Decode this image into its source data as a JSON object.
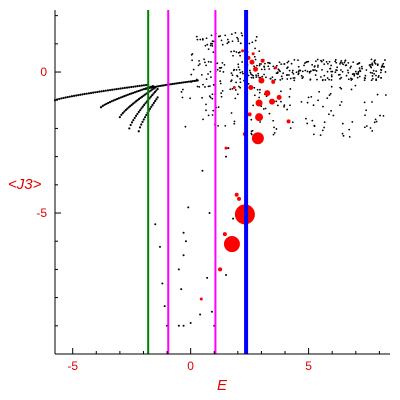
{
  "chart_data": {
    "type": "scatter",
    "title": "",
    "xlabel": "E",
    "ylabel": "<J3>",
    "xlim": [
      -5.75,
      8.45
    ],
    "ylim": [
      -10.0,
      2.2
    ],
    "x_ticks": [
      {
        "value": -5,
        "label": "-5"
      },
      {
        "value": 0,
        "label": "0"
      },
      {
        "value": 5,
        "label": "5"
      }
    ],
    "y_ticks": [
      {
        "value": 0,
        "label": "0"
      },
      {
        "value": -5,
        "label": "-5"
      }
    ],
    "grid": false,
    "colors": {
      "axis": "#000000",
      "labels": "#e00000",
      "black_series": "#000000",
      "red_series": "#ff0000"
    },
    "vertical_lines": [
      {
        "x": -1.8,
        "color": "#008000",
        "width": 2
      },
      {
        "x": -0.95,
        "color": "#ff00ff",
        "width": 2
      },
      {
        "x": 1.05,
        "color": "#ff00ff",
        "width": 2
      },
      {
        "x": 2.35,
        "color": "#0000ff",
        "width": 4
      }
    ],
    "black_series": {
      "bands": [
        {
          "x_start": -5.75,
          "x_end": -1.8,
          "y_start": -1.0,
          "y_end": -0.45,
          "count": 45
        },
        {
          "x_start": -3.8,
          "x_end": -1.6,
          "y_start": -1.25,
          "y_end": -0.5,
          "count": 30
        },
        {
          "x_start": -3.0,
          "x_end": -1.5,
          "y_start": -1.6,
          "y_end": -0.55,
          "count": 25
        },
        {
          "x_start": -2.6,
          "x_end": -1.4,
          "y_start": -2.0,
          "y_end": -0.6,
          "count": 22
        },
        {
          "x_start": -2.2,
          "x_end": -1.4,
          "y_start": -2.1,
          "y_end": -0.9,
          "count": 16
        },
        {
          "x_start": -1.9,
          "x_end": 0.3,
          "y_start": -0.6,
          "y_end": -0.3,
          "count": 30
        }
      ],
      "cloud": [
        {
          "x_min": 0.0,
          "x_max": 3.0,
          "y_min": -0.8,
          "y_max": 1.4,
          "count": 130
        },
        {
          "x_min": 2.5,
          "x_max": 8.3,
          "y_min": -0.3,
          "y_max": 0.45,
          "count": 230
        },
        {
          "x_min": 2.5,
          "x_max": 8.3,
          "y_min": -2.3,
          "y_max": -0.4,
          "count": 90
        },
        {
          "x_min": -0.5,
          "x_max": 2.0,
          "y_min": -2.0,
          "y_max": -0.3,
          "count": 35
        }
      ],
      "sparse_points": [
        [
          -1.5,
          -5.4
        ],
        [
          -1.3,
          -6.2
        ],
        [
          -1.2,
          -7.5
        ],
        [
          -1.1,
          -8.3
        ],
        [
          -1.0,
          -9.0
        ],
        [
          -0.5,
          -9.0
        ],
        [
          -0.3,
          -9.0
        ],
        [
          -0.4,
          -7.7
        ],
        [
          -0.5,
          -7.0
        ],
        [
          -0.3,
          -6.5
        ],
        [
          -0.2,
          -6.0
        ],
        [
          -0.3,
          -5.7
        ],
        [
          0.0,
          -8.9
        ],
        [
          0.4,
          -8.6
        ],
        [
          0.7,
          -7.3
        ],
        [
          0.8,
          -5.0
        ],
        [
          1.2,
          -7.0
        ],
        [
          1.5,
          -7.2
        ],
        [
          0.5,
          -3.5
        ],
        [
          1.5,
          -3.0
        ],
        [
          1.8,
          -5.2
        ],
        [
          0.9,
          -8.5
        ],
        [
          1.0,
          -9.0
        ],
        [
          -0.1,
          -4.8
        ],
        [
          1.6,
          -2.7
        ]
      ]
    },
    "red_series": [
      {
        "x": 1.75,
        "y": -6.1,
        "size": 8
      },
      {
        "x": 2.3,
        "y": -5.05,
        "size": 10
      },
      {
        "x": 2.85,
        "y": -2.35,
        "size": 6
      },
      {
        "x": 2.9,
        "y": -1.6,
        "size": 4
      },
      {
        "x": 2.9,
        "y": -1.1,
        "size": 3.5
      },
      {
        "x": 3.45,
        "y": -1.05,
        "size": 3
      },
      {
        "x": 3.25,
        "y": -0.75,
        "size": 3
      },
      {
        "x": 3.0,
        "y": -0.3,
        "size": 3
      },
      {
        "x": 2.75,
        "y": 0.1,
        "size": 2.5
      },
      {
        "x": 2.6,
        "y": 0.35,
        "size": 2.5
      },
      {
        "x": 3.75,
        "y": -0.9,
        "size": 2.5
      },
      {
        "x": 2.55,
        "y": -0.55,
        "size": 2.5
      },
      {
        "x": 3.05,
        "y": 0.4,
        "size": 2
      },
      {
        "x": 2.45,
        "y": 0.5,
        "size": 2
      },
      {
        "x": 3.5,
        "y": -0.35,
        "size": 2
      },
      {
        "x": 2.3,
        "y": -2.2,
        "size": 2
      },
      {
        "x": 2.5,
        "y": -1.5,
        "size": 2
      },
      {
        "x": 4.15,
        "y": -1.75,
        "size": 2
      },
      {
        "x": 2.05,
        "y": -4.5,
        "size": 2
      },
      {
        "x": 2.35,
        "y": -4.7,
        "size": 2
      },
      {
        "x": 1.95,
        "y": -4.35,
        "size": 2
      },
      {
        "x": 1.25,
        "y": -7.0,
        "size": 2
      },
      {
        "x": 1.45,
        "y": -5.75,
        "size": 2
      },
      {
        "x": 0.45,
        "y": -8.05,
        "size": 1.5
      },
      {
        "x": 1.5,
        "y": -2.7,
        "size": 1.5
      },
      {
        "x": 1.85,
        "y": -0.55,
        "size": 1.5
      },
      {
        "x": 2.2,
        "y": 0.75,
        "size": 1.5
      },
      {
        "x": 3.6,
        "y": 0.15,
        "size": 1.5
      },
      {
        "x": 2.65,
        "y": 0.65,
        "size": 1.5
      }
    ]
  }
}
